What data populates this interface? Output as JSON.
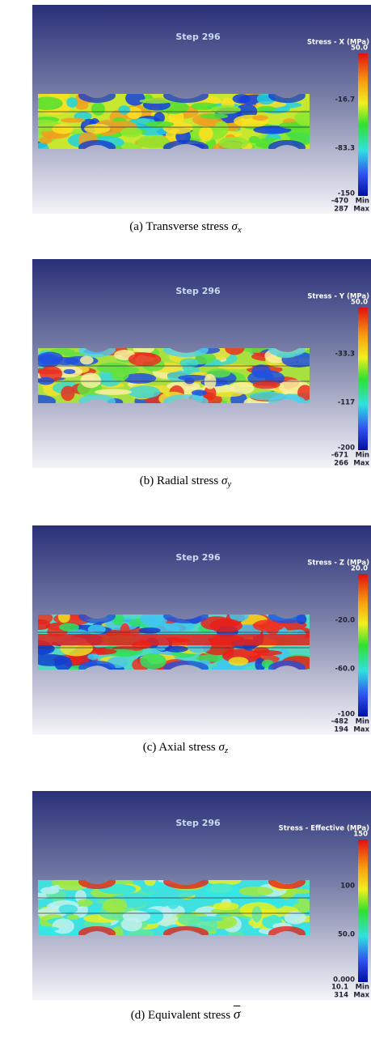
{
  "panels": [
    {
      "step": "Step 296",
      "legend_title": "Stress - X (MPa)",
      "ticks": [
        "50.0",
        "-16.7",
        "-83.3",
        "-150"
      ],
      "min": {
        "value": "-470",
        "label": "Min"
      },
      "max": {
        "value": "287",
        "label": "Max"
      },
      "caption": {
        "label": "(a) Transverse stress ",
        "symbol": "σ",
        "subscript": "x"
      }
    },
    {
      "step": "Step 296",
      "legend_title": "Stress - Y (MPa)",
      "ticks": [
        "50.0",
        "-33.3",
        "-117",
        "-200"
      ],
      "min": {
        "value": "-671",
        "label": "Min"
      },
      "max": {
        "value": "266",
        "label": "Max"
      },
      "caption": {
        "label": "(b) Radial stress ",
        "symbol": "σ",
        "subscript": "y"
      }
    },
    {
      "step": "Step 296",
      "legend_title": "Stress - Z (MPa)",
      "ticks": [
        "20.0",
        "-20.0",
        "-60.0",
        "-100"
      ],
      "min": {
        "value": "-482",
        "label": "Min"
      },
      "max": {
        "value": "194",
        "label": "Max"
      },
      "caption": {
        "label": "(c) Axial stress ",
        "symbol": "σ",
        "subscript": "z"
      }
    },
    {
      "step": "Step 296",
      "legend_title": "Stress - Effective (MPa)",
      "ticks": [
        "150",
        "100",
        "50.0",
        "0.000"
      ],
      "min": {
        "value": "10.1",
        "label": "Min"
      },
      "max": {
        "value": "314",
        "label": "Max"
      },
      "caption": {
        "label": "(d) Equivalent stress ",
        "symbol": "σ"
      }
    }
  ]
}
